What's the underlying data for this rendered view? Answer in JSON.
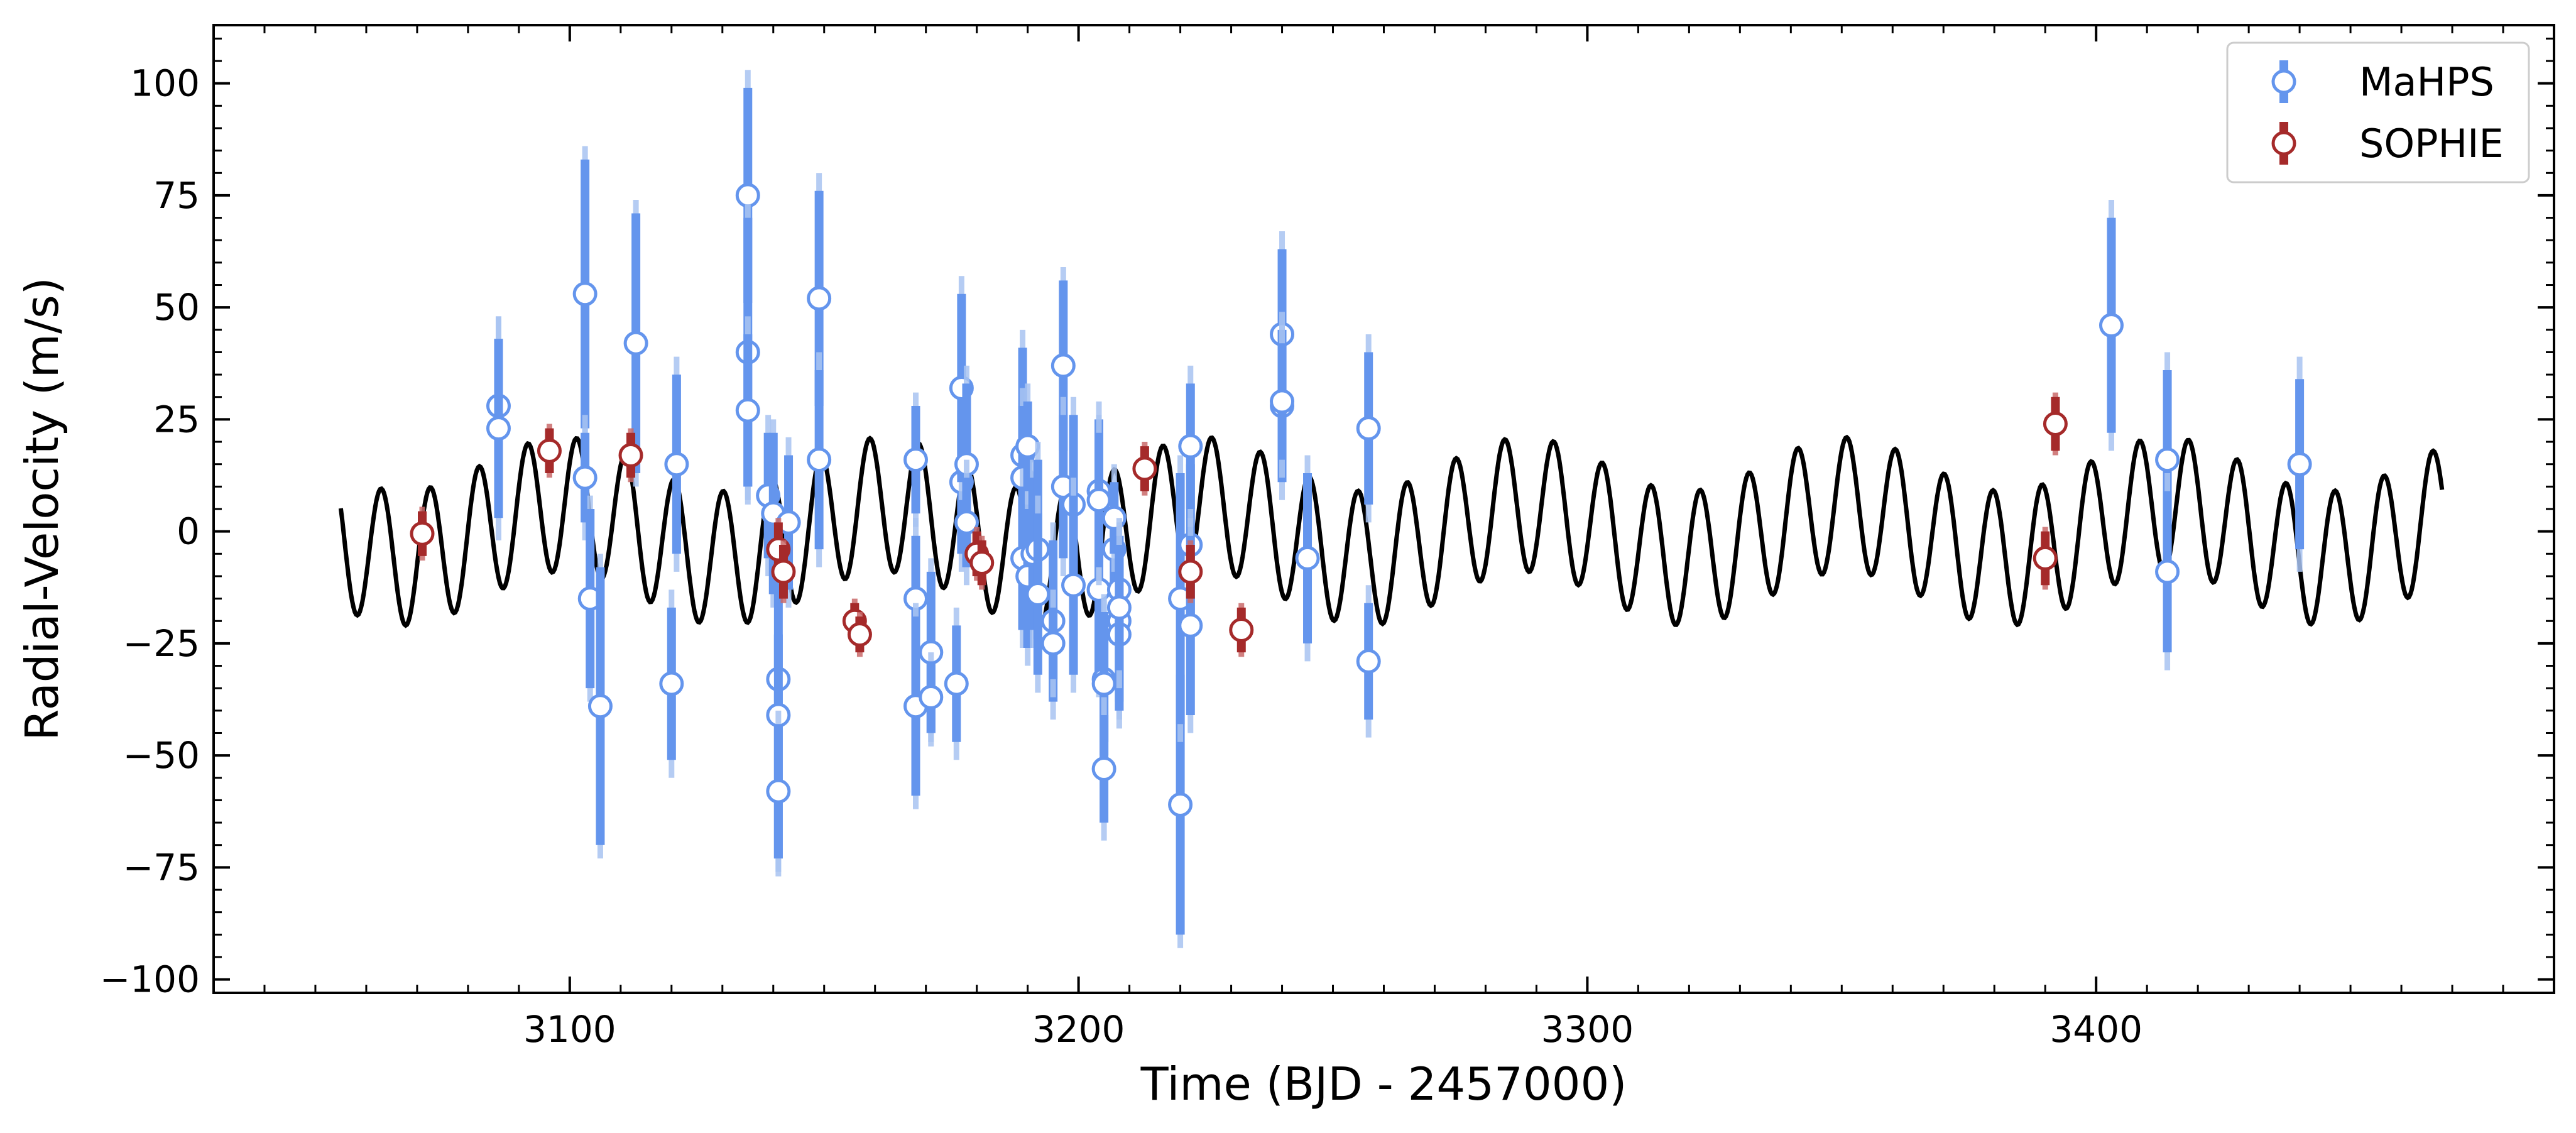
{
  "chart_data": {
    "type": "scatter",
    "title": "",
    "xlabel": "Time (BJD - 2457000)",
    "ylabel": "Radial-Velocity (m/s)",
    "xlim": [
      3030,
      3490
    ],
    "ylim": [
      -103,
      113
    ],
    "xticks": [
      3100,
      3200,
      3300,
      3400
    ],
    "yticks": [
      -100,
      -75,
      -50,
      -25,
      0,
      25,
      50,
      75,
      100
    ],
    "xtick_labels": [
      "3100",
      "3200",
      "3300",
      "3400"
    ],
    "ytick_labels": [
      "−100",
      "−75",
      "−50",
      "−25",
      "0",
      "25",
      "50",
      "75",
      "100"
    ],
    "grid": false,
    "legend_position": "top-right",
    "model": {
      "name": "",
      "color": "#000000",
      "t_start": 3055,
      "t_end": 3468,
      "components": [
        {
          "amplitude": 15,
          "period": 9.6,
          "phase": 1.2
        },
        {
          "amplitude": 6,
          "period": 63,
          "phase": 0.4
        }
      ]
    },
    "series": [
      {
        "name": "MaHPS",
        "color": "#6495ED",
        "jitter_color": "#A9C4F2",
        "points": [
          [
            3086,
            28,
            15,
            20
          ],
          [
            3086,
            23,
            20,
            25
          ],
          [
            3103,
            53,
            30,
            33
          ],
          [
            3103,
            12,
            10,
            14
          ],
          [
            3104,
            -15,
            20,
            23
          ],
          [
            3106,
            -39,
            31,
            34
          ],
          [
            3113,
            42,
            29,
            32
          ],
          [
            3120,
            -34,
            17,
            21
          ],
          [
            3121,
            15,
            20,
            24
          ],
          [
            3135,
            75,
            24,
            28
          ],
          [
            3135,
            40,
            30,
            33
          ],
          [
            3135,
            27,
            17,
            21
          ],
          [
            3139,
            8,
            14,
            18
          ],
          [
            3140,
            4,
            18,
            21
          ],
          [
            3141,
            -33,
            10,
            13
          ],
          [
            3141,
            -41,
            32,
            36
          ],
          [
            3141,
            -58,
            15,
            18
          ],
          [
            3143,
            2,
            15,
            19
          ],
          [
            3149,
            52,
            24,
            28
          ],
          [
            3149,
            16,
            20,
            24
          ],
          [
            3168,
            16,
            12,
            15
          ],
          [
            3168,
            -15,
            14,
            18
          ],
          [
            3168,
            -39,
            20,
            23
          ],
          [
            3171,
            -27,
            18,
            21
          ],
          [
            3171,
            -37,
            8,
            10
          ],
          [
            3176,
            -34,
            13,
            17
          ],
          [
            3177,
            11,
            16,
            20
          ],
          [
            3177,
            32,
            21,
            25
          ],
          [
            3178,
            15,
            18,
            22
          ],
          [
            3178,
            2,
            10,
            14
          ],
          [
            3189,
            17,
            24,
            28
          ],
          [
            3189,
            12,
            16,
            20
          ],
          [
            3189,
            -6,
            16,
            20
          ],
          [
            3190,
            -10,
            16,
            20
          ],
          [
            3190,
            19,
            10,
            14
          ],
          [
            3191,
            -5,
            17,
            21
          ],
          [
            3192,
            -4,
            20,
            24
          ],
          [
            3192,
            -14,
            18,
            22
          ],
          [
            3195,
            -20,
            18,
            22
          ],
          [
            3195,
            -25,
            8,
            12
          ],
          [
            3197,
            37,
            19,
            22
          ],
          [
            3197,
            10,
            16,
            20
          ],
          [
            3199,
            6,
            20,
            24
          ],
          [
            3199,
            -12,
            20,
            24
          ],
          [
            3204,
            -13,
            20,
            24
          ],
          [
            3204,
            9,
            16,
            20
          ],
          [
            3204,
            7,
            15,
            19
          ],
          [
            3205,
            -33,
            14,
            18
          ],
          [
            3205,
            -34,
            16,
            20
          ],
          [
            3205,
            -53,
            12,
            16
          ],
          [
            3207,
            -4,
            10,
            14
          ],
          [
            3207,
            3,
            8,
            12
          ],
          [
            3208,
            -20,
            18,
            22
          ],
          [
            3208,
            -23,
            17,
            21
          ],
          [
            3208,
            -13,
            12,
            16
          ],
          [
            3208,
            -17,
            14,
            18
          ],
          [
            3220,
            -61,
            29,
            32
          ],
          [
            3220,
            -15,
            28,
            32
          ],
          [
            3222,
            -3,
            18,
            22
          ],
          [
            3222,
            19,
            14,
            18
          ],
          [
            3222,
            -21,
            20,
            24
          ],
          [
            3240,
            44,
            19,
            23
          ],
          [
            3240,
            28,
            17,
            21
          ],
          [
            3240,
            29,
            13,
            17
          ],
          [
            3245,
            -6,
            19,
            23
          ],
          [
            3257,
            23,
            17,
            21
          ],
          [
            3257,
            -29,
            13,
            17
          ],
          [
            3403,
            46,
            24,
            28
          ],
          [
            3414,
            16,
            20,
            24
          ],
          [
            3414,
            -9,
            18,
            22
          ],
          [
            3440,
            15,
            19,
            24
          ]
        ]
      },
      {
        "name": "SOPHIE",
        "color": "#A52A2A",
        "jitter_color": "#C96A6A",
        "points": [
          [
            3071,
            -0.5,
            5,
            6
          ],
          [
            3096,
            18,
            5,
            6
          ],
          [
            3112,
            17,
            5,
            6
          ],
          [
            3141,
            -4,
            6,
            7
          ],
          [
            3142,
            -9,
            6,
            7
          ],
          [
            3156,
            -20,
            4,
            5
          ],
          [
            3157,
            -23,
            4,
            5
          ],
          [
            3180,
            -5,
            5,
            6
          ],
          [
            3181,
            -7,
            5,
            6
          ],
          [
            3213,
            14,
            5,
            6
          ],
          [
            3222,
            -9,
            6,
            7
          ],
          [
            3232,
            -22,
            5,
            6
          ],
          [
            3390,
            -6,
            6,
            7
          ],
          [
            3392,
            24,
            6,
            7
          ]
        ]
      }
    ]
  }
}
